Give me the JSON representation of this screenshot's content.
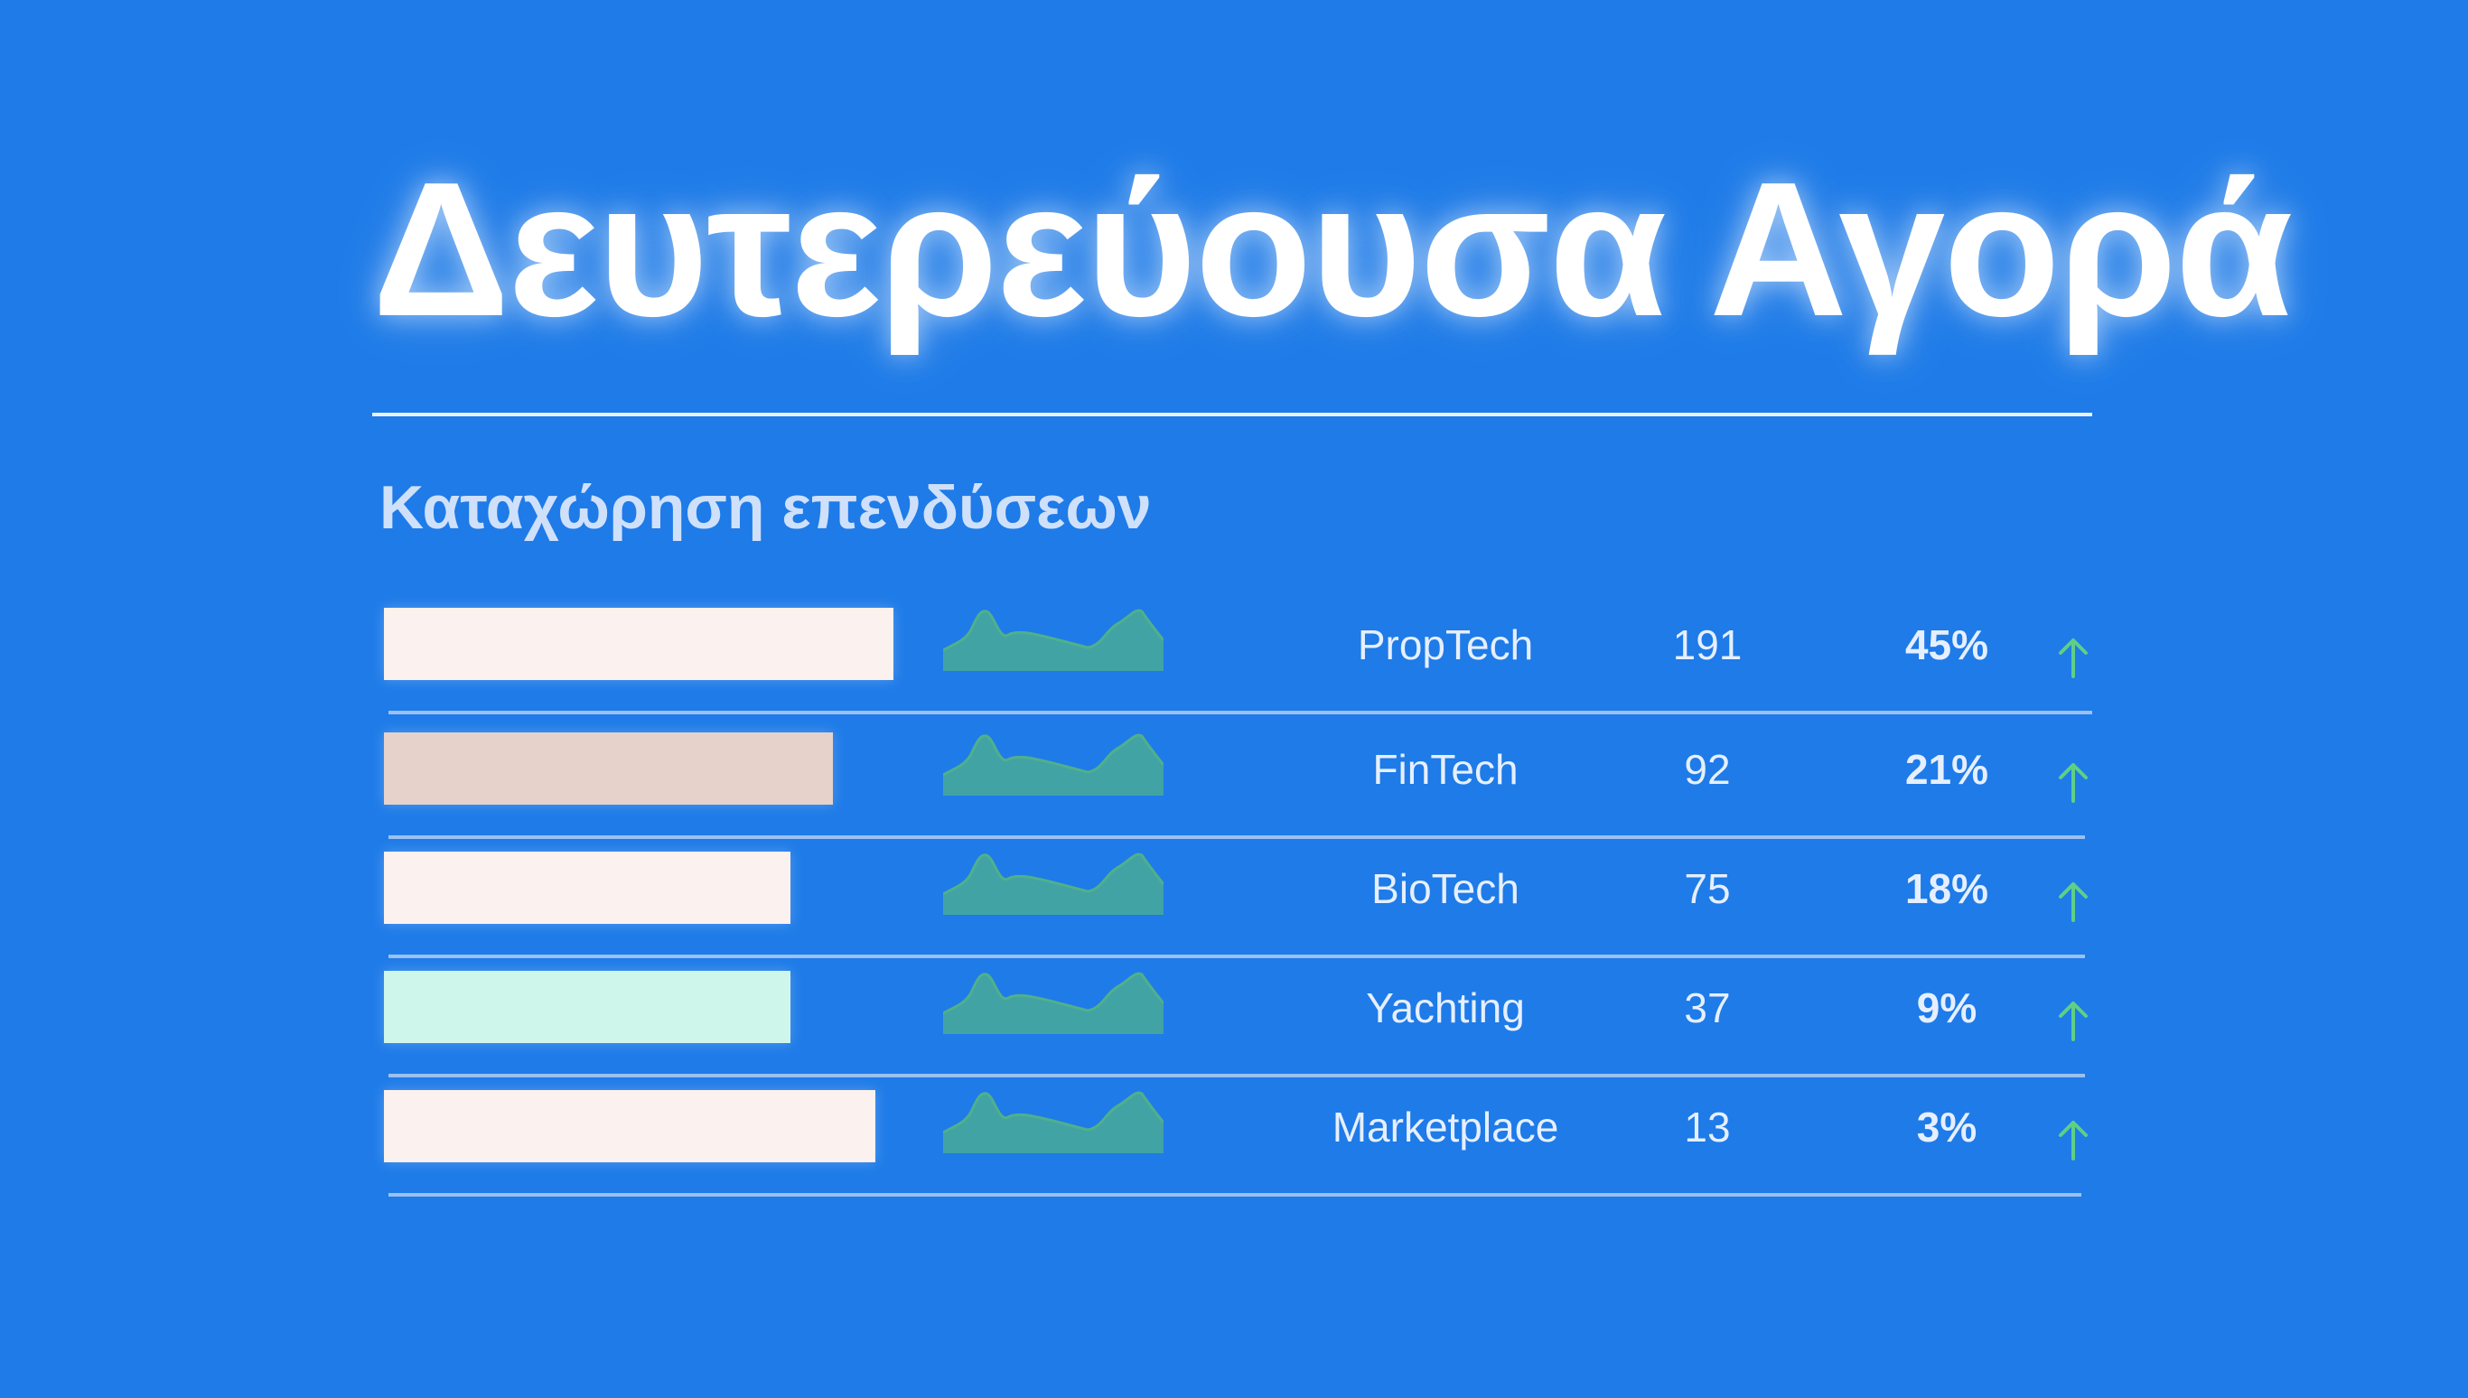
{
  "title": "Δευτερεύουσα Αγορά",
  "subtitle": "Καταχώρηση επενδύσεων",
  "colors": {
    "background": "#1e7be8",
    "sparkline_fill": "#4fb08d",
    "arrow": "#5fcf86"
  },
  "rows": [
    {
      "name": "PropTech",
      "count": "191",
      "percent": "45%",
      "share": 0.45,
      "bar_color": "#fbf1ee",
      "trend_icon": "arrow-up-icon"
    },
    {
      "name": "FinTech",
      "count": "92",
      "percent": "21%",
      "share": 0.21,
      "bar_color": "#e6d2ca",
      "trend_icon": "arrow-up-icon"
    },
    {
      "name": "BioTech",
      "count": "75",
      "percent": "18%",
      "share": 0.18,
      "bar_color": "#fbf1ee",
      "trend_icon": "arrow-up-icon"
    },
    {
      "name": "Yachting",
      "count": "37",
      "percent": "9%",
      "share": 0.09,
      "bar_color": "#cff6ea",
      "trend_icon": "arrow-up-icon"
    },
    {
      "name": "Marketplace",
      "count": "13",
      "percent": "3%",
      "share": 0.03,
      "bar_color": "#fbf1ee",
      "trend_icon": "arrow-up-icon"
    }
  ]
}
